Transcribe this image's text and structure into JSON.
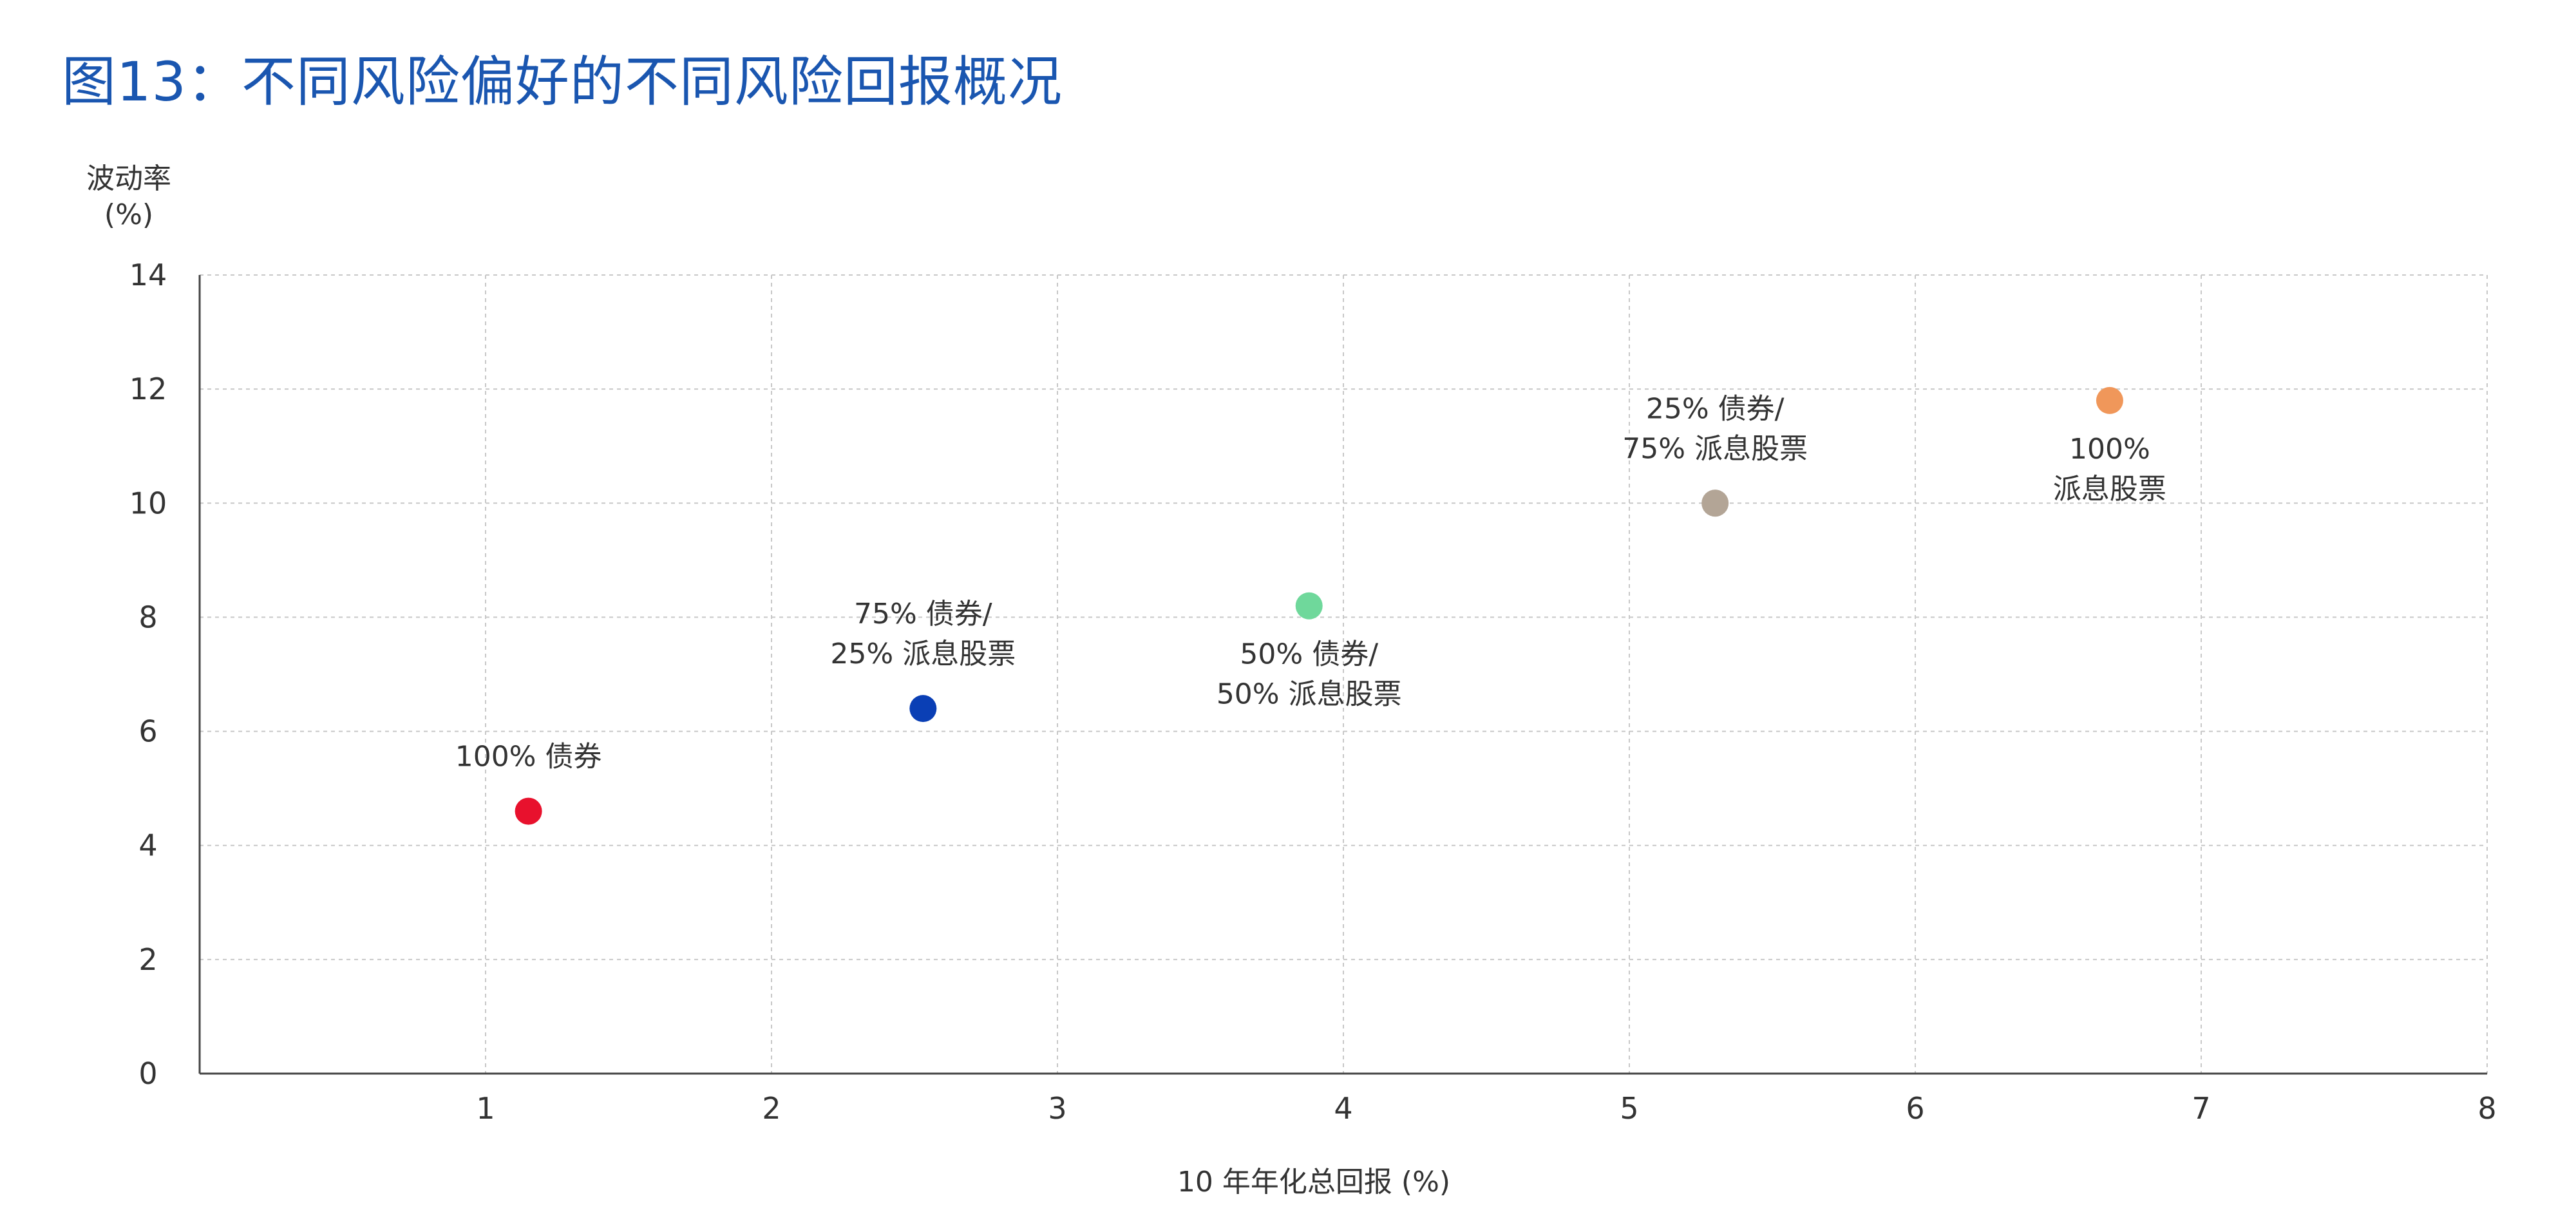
{
  "title": "图13：不同风险偏好的不同风险回报概况",
  "chart_data": {
    "type": "scatter",
    "title": "图13：不同风险偏好的不同风险回报概况",
    "xlabel": "10 年年化总回报 (%)",
    "ylabel": [
      "波动率",
      "(%)"
    ],
    "xlim": [
      0,
      8
    ],
    "ylim": [
      0,
      14
    ],
    "xticks": [
      1,
      2,
      3,
      4,
      5,
      6,
      7,
      8
    ],
    "yticks": [
      0,
      2,
      4,
      6,
      8,
      10,
      12,
      14
    ],
    "grid": true,
    "points": [
      {
        "label": [
          "100% 债券"
        ],
        "x": 1.15,
        "y": 4.6,
        "color": "#e8112d",
        "label_pos": "above"
      },
      {
        "label": [
          "75% 债券/",
          "25% 派息股票"
        ],
        "x": 2.53,
        "y": 6.4,
        "color": "#0a3fb5",
        "label_pos": "above"
      },
      {
        "label": [
          "50% 债券/",
          "50% 派息股票"
        ],
        "x": 3.88,
        "y": 8.2,
        "color": "#6fd89b",
        "label_pos": "below"
      },
      {
        "label": [
          "25% 债券/",
          "75% 派息股票"
        ],
        "x": 5.3,
        "y": 10.0,
        "color": "#b3a596",
        "label_pos": "above"
      },
      {
        "label": [
          "100%",
          "派息股票"
        ],
        "x": 6.68,
        "y": 11.8,
        "color": "#f0975a",
        "label_pos": "below"
      }
    ]
  }
}
